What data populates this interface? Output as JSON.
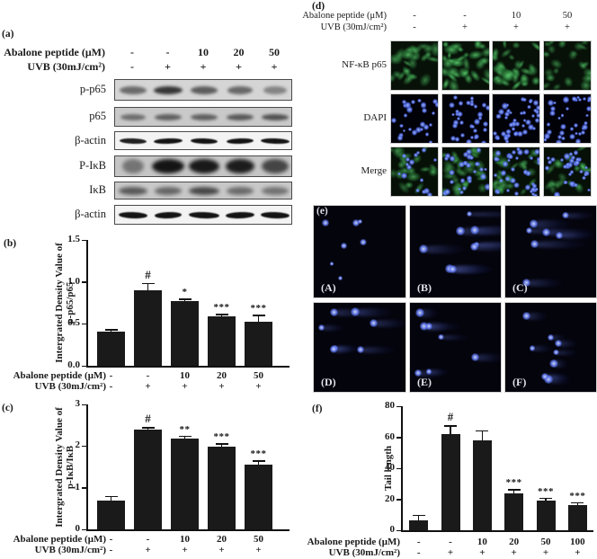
{
  "figure": {
    "background": "#ffffff",
    "text_color": "#1a1a1a"
  },
  "treatment_row1_label": "Abalone peptide (μM)",
  "treatment_row2_label": "UVB (30mJ/cm²)",
  "panels": {
    "a": {
      "label": "(a)",
      "lane_values_row1": [
        "-",
        "-",
        "10",
        "20",
        "50"
      ],
      "lane_values_row2": [
        "-",
        "+",
        "+",
        "+",
        "+"
      ],
      "blots": [
        {
          "label": "p-p65",
          "bg": "#d5d5d5",
          "band_height": 9,
          "blur": 1.6,
          "band_opacities": [
            0.55,
            0.82,
            0.62,
            0.56,
            0.42
          ],
          "band_widths": [
            30,
            32,
            30,
            28,
            26
          ]
        },
        {
          "label": "p65",
          "bg": "#c9c9c9",
          "band_height": 7,
          "blur": 1.6,
          "band_opacities": [
            0.5,
            0.58,
            0.58,
            0.62,
            0.66
          ],
          "band_widths": [
            28,
            30,
            30,
            30,
            30
          ]
        },
        {
          "label": "β-actin",
          "bg": "#f3f3f3",
          "band_height": 6,
          "blur": 0.5,
          "band_opacities": [
            0.95,
            1,
            1,
            1,
            1
          ],
          "band_widths": [
            30,
            32,
            30,
            30,
            32
          ]
        },
        {
          "label": "P-IκB",
          "bg": "#c5c5c5",
          "band_height": 16,
          "blur": 2.0,
          "band_opacities": [
            0.45,
            1,
            0.97,
            0.95,
            0.72
          ],
          "band_widths": [
            24,
            36,
            34,
            32,
            30
          ]
        },
        {
          "label": "IκB",
          "bg": "#c8c8c8",
          "band_height": 9,
          "blur": 2.0,
          "band_opacities": [
            0.62,
            0.55,
            0.72,
            0.52,
            0.48
          ],
          "band_widths": [
            32,
            30,
            34,
            30,
            30
          ]
        },
        {
          "label": "β-actin",
          "bg": "#f3f3f3",
          "band_height": 7,
          "blur": 0.5,
          "band_opacities": [
            1,
            1,
            1,
            1,
            1
          ],
          "band_widths": [
            32,
            30,
            34,
            32,
            32
          ]
        }
      ]
    },
    "d": {
      "label": "(d)",
      "lane_values_row1": [
        "-",
        "-",
        "10",
        "50"
      ],
      "lane_values_row2": [
        "-",
        "+",
        "+",
        "+"
      ],
      "row_labels": [
        "NF-κB p65",
        "DAPI",
        "Merge"
      ],
      "green_color": "#3db654",
      "blue_color": "#4a64e0"
    },
    "e": {
      "label": "(e)",
      "image_labels": [
        "(A)",
        "(B)",
        "(C)",
        "(D)",
        "(E)",
        "(F)"
      ],
      "tail_levels": [
        0,
        1,
        0.9,
        0.6,
        0.5,
        0.35
      ],
      "comet_counts": [
        7,
        8,
        7,
        7,
        7,
        8
      ]
    }
  },
  "chart_data": [
    {
      "id": "b",
      "type": "bar",
      "panel_label": "(b)",
      "ylabel_line1": "Intergrated Density Value of",
      "ylabel_line2": "p-p65/p65",
      "ylim": [
        0,
        1.5
      ],
      "yticks": [
        "0.0",
        "0.5",
        "1.0",
        "1.5"
      ],
      "values": [
        0.41,
        0.9,
        0.77,
        0.59,
        0.52
      ],
      "errors": [
        0.015,
        0.08,
        0.02,
        0.02,
        0.08
      ],
      "sig": [
        "",
        "#",
        "*",
        "***",
        "***"
      ],
      "categories_row1": [
        "-",
        "-",
        "10",
        "20",
        "50"
      ],
      "categories_row2": [
        "-",
        "+",
        "+",
        "+",
        "+"
      ],
      "xlabel_row1": "Abalone peptide (μM)",
      "xlabel_row2": "UVB (30mJ/cm²)",
      "bar_color": "#1a1a1a",
      "grid": false,
      "legend": "none"
    },
    {
      "id": "c",
      "type": "bar",
      "panel_label": "(c)",
      "ylabel_line1": "Intergrated Density Value of",
      "ylabel_line2": "p-IκB/IκB",
      "ylim": [
        0,
        3
      ],
      "yticks": [
        "0",
        "1",
        "2",
        "3"
      ],
      "values": [
        0.7,
        2.4,
        2.19,
        1.99,
        1.55
      ],
      "errors": [
        0.08,
        0.03,
        0.04,
        0.06,
        0.08
      ],
      "sig": [
        "",
        "#",
        "**",
        "***",
        "***"
      ],
      "categories_row1": [
        "-",
        "-",
        "10",
        "20",
        "50"
      ],
      "categories_row2": [
        "-",
        "+",
        "+",
        "+",
        "+"
      ],
      "xlabel_row1": "Abalone peptide (μM)",
      "xlabel_row2": "UVB (30mJ/cm²)",
      "bar_color": "#1a1a1a",
      "grid": false,
      "legend": "none"
    },
    {
      "id": "f",
      "type": "bar",
      "panel_label": "(f)",
      "ylabel_line1": "Tail length",
      "ylabel_line2": "",
      "ylim": [
        0,
        80
      ],
      "yticks": [
        "0",
        "20",
        "40",
        "60",
        "80"
      ],
      "values": [
        6.5,
        62,
        58,
        24,
        19,
        16
      ],
      "errors": [
        3,
        5,
        6,
        2,
        1.5,
        1.5
      ],
      "sig": [
        "",
        "#",
        "",
        "***",
        "***",
        "***"
      ],
      "categories_row1": [
        "-",
        "-",
        "10",
        "20",
        "50",
        "100"
      ],
      "categories_row2": [
        "-",
        "+",
        "+",
        "+",
        "+",
        "+"
      ],
      "xlabel_row1": "Abalone peptide (μM)",
      "xlabel_row2": "UVB (30mJ/cm²)",
      "bar_color": "#1a1a1a",
      "grid": false,
      "legend": "none"
    }
  ]
}
